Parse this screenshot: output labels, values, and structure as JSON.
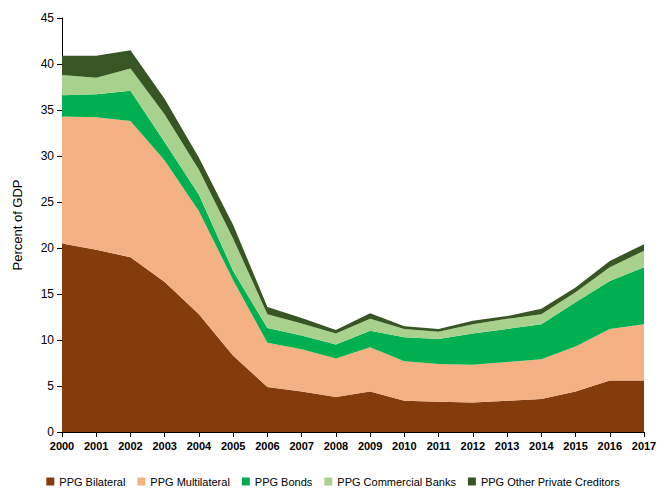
{
  "chart_data": {
    "type": "area",
    "y_label": "Percent of GDP",
    "categories": [
      "2000",
      "2001",
      "2002",
      "2003",
      "2004",
      "2005",
      "2006",
      "2007",
      "2008",
      "2009",
      "2010",
      "2011",
      "2012",
      "2013",
      "2014",
      "2015",
      "2016",
      "2017"
    ],
    "series": [
      {
        "name": "PPG Bilateral",
        "color": "#843C0C",
        "values": [
          20.5,
          19.8,
          19.0,
          16.3,
          12.8,
          8.3,
          4.9,
          4.4,
          3.8,
          4.4,
          3.4,
          3.3,
          3.2,
          3.4,
          3.6,
          4.4,
          5.6,
          5.6
        ]
      },
      {
        "name": "PPG Multilateral",
        "color": "#F4B183",
        "values": [
          13.8,
          14.4,
          14.8,
          13.2,
          11.2,
          8.2,
          4.8,
          4.6,
          4.2,
          4.8,
          4.3,
          4.1,
          4.1,
          4.2,
          4.3,
          4.9,
          5.6,
          6.1
        ]
      },
      {
        "name": "PPG Bonds",
        "color": "#00B050",
        "values": [
          2.3,
          2.5,
          3.3,
          2.0,
          1.8,
          1.0,
          1.6,
          1.5,
          1.5,
          1.8,
          2.6,
          2.7,
          3.4,
          3.6,
          3.8,
          4.8,
          5.2,
          6.2
        ]
      },
      {
        "name": "PPG Commercial Banks",
        "color": "#A9D18E",
        "values": [
          2.2,
          1.8,
          2.4,
          3.0,
          2.7,
          3.5,
          1.5,
          1.3,
          1.2,
          1.3,
          0.9,
          0.8,
          1.0,
          1.1,
          1.1,
          1.1,
          1.5,
          1.8
        ]
      },
      {
        "name": "PPG Other Private Creditors",
        "color": "#375623",
        "values": [
          2.1,
          2.4,
          2.0,
          1.7,
          1.3,
          1.5,
          0.8,
          0.6,
          0.4,
          0.6,
          0.3,
          0.3,
          0.4,
          0.3,
          0.6,
          0.5,
          0.7,
          0.7
        ]
      }
    ],
    "ylim": [
      0,
      45
    ],
    "yticks": [
      0,
      5,
      10,
      15,
      20,
      25,
      30,
      35,
      40,
      45
    ],
    "stacked": true,
    "grid": false,
    "legend": "bottom"
  }
}
